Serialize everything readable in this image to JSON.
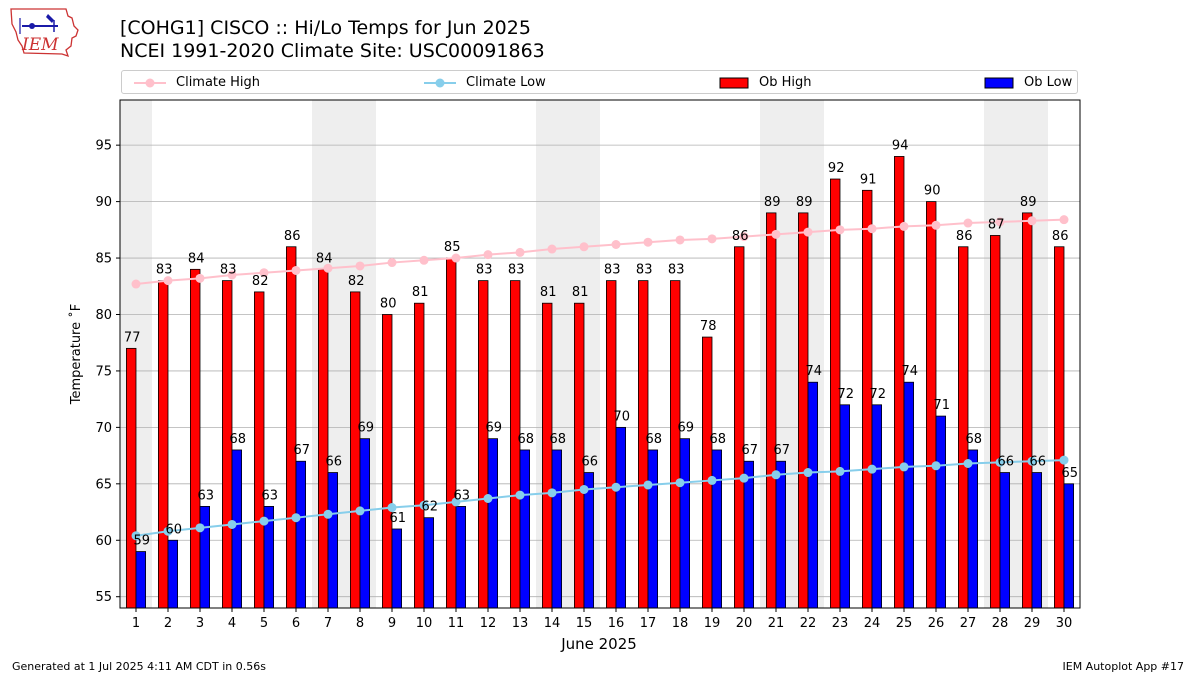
{
  "header": {
    "title_line1": "[COHG1] CISCO :: Hi/Lo Temps for Jun 2025",
    "title_line2": "NCEI 1991-2020 Climate Site: USC00091863",
    "logo_text": "IEM"
  },
  "footer": {
    "generated": "Generated at 1 Jul 2025 4:11 AM CDT in 0.56s",
    "app": "IEM Autoplot App #17"
  },
  "colors": {
    "ob_high": "#ff0000",
    "ob_low": "#0000ff",
    "climate_high": "#ffc0cb",
    "climate_low": "#87ceeb",
    "weekend_shade": "#eeeeee",
    "grid": "#b0b0b0"
  },
  "chart_data": {
    "type": "bar",
    "xlabel": "June 2025",
    "ylabel": "Temperature $^\\circ$F",
    "ylabel_display": "Temperature ˚F",
    "ylim": [
      54,
      99
    ],
    "yticks": [
      55,
      60,
      65,
      70,
      75,
      80,
      85,
      90,
      95
    ],
    "grid": true,
    "legend_position": "top",
    "categories": [
      "1",
      "2",
      "3",
      "4",
      "5",
      "6",
      "7",
      "8",
      "9",
      "10",
      "11",
      "12",
      "13",
      "14",
      "15",
      "16",
      "17",
      "18",
      "19",
      "20",
      "21",
      "22",
      "23",
      "24",
      "25",
      "26",
      "27",
      "28",
      "29",
      "30"
    ],
    "shaded_days": [
      1,
      7,
      8,
      14,
      15,
      21,
      22,
      28,
      29
    ],
    "series": [
      {
        "name": "Climate High",
        "kind": "line",
        "values": [
          82.7,
          83.0,
          83.2,
          83.5,
          83.7,
          83.9,
          84.1,
          84.3,
          84.6,
          84.8,
          85.0,
          85.3,
          85.5,
          85.8,
          86.0,
          86.2,
          86.4,
          86.6,
          86.7,
          86.9,
          87.1,
          87.3,
          87.5,
          87.6,
          87.8,
          87.9,
          88.1,
          88.2,
          88.3,
          88.4
        ]
      },
      {
        "name": "Climate Low",
        "kind": "line",
        "values": [
          60.4,
          60.8,
          61.1,
          61.4,
          61.7,
          62.0,
          62.3,
          62.6,
          62.9,
          63.1,
          63.4,
          63.7,
          64.0,
          64.2,
          64.5,
          64.7,
          64.9,
          65.1,
          65.3,
          65.5,
          65.8,
          66.0,
          66.1,
          66.3,
          66.5,
          66.6,
          66.8,
          66.9,
          67.0,
          67.1
        ]
      },
      {
        "name": "Ob High",
        "kind": "bar",
        "values": [
          77,
          83,
          84,
          83,
          82,
          86,
          84,
          82,
          80,
          81,
          85,
          83,
          83,
          81,
          81,
          83,
          83,
          83,
          78,
          86,
          89,
          89,
          92,
          91,
          94,
          90,
          86,
          87,
          89,
          86
        ]
      },
      {
        "name": "Ob Low",
        "kind": "bar",
        "values": [
          59,
          60,
          63,
          68,
          63,
          67,
          66,
          69,
          61,
          62,
          63,
          69,
          68,
          68,
          66,
          70,
          68,
          69,
          68,
          67,
          67,
          74,
          72,
          72,
          74,
          71,
          68,
          66,
          66,
          65
        ]
      }
    ]
  }
}
